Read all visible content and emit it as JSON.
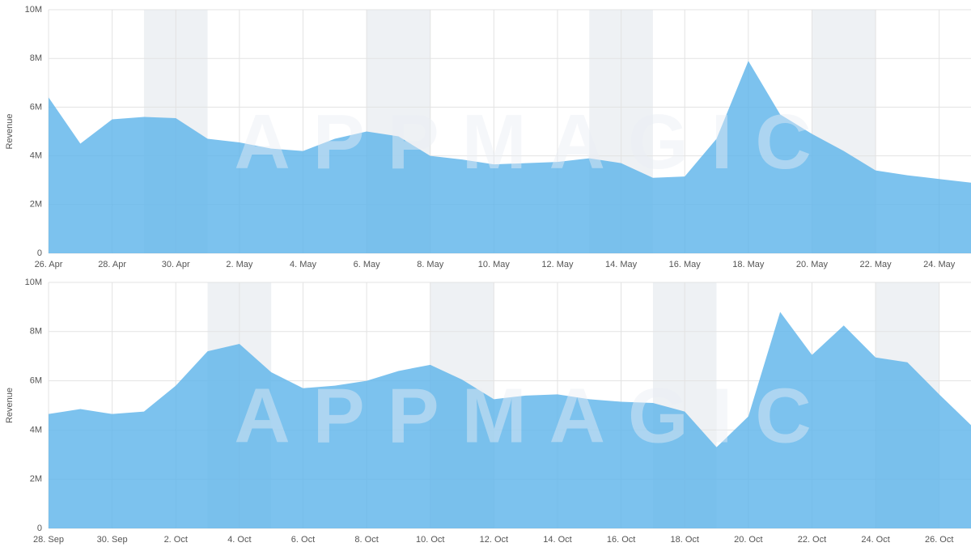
{
  "chart_data": [
    {
      "type": "area",
      "y_label": "Revenue",
      "watermark": "APPMAGIC",
      "color": "#5fb5ea",
      "grid": true,
      "categories": [
        "26. Apr",
        null,
        "28. Apr",
        null,
        "30. Apr",
        null,
        "2. May",
        null,
        "4. May",
        null,
        "6. May",
        null,
        "8. May",
        null,
        "10. May",
        null,
        "12. May",
        null,
        "14. May",
        null,
        "16. May",
        null,
        "18. May",
        null,
        "20. May",
        null,
        "22. May",
        null,
        "24. May",
        null
      ],
      "series": [
        {
          "name": "Revenue",
          "values": [
            6400000,
            4500000,
            5500000,
            5600000,
            5550000,
            4700000,
            4550000,
            4300000,
            4200000,
            4700000,
            5000000,
            4800000,
            4000000,
            3850000,
            3650000,
            3700000,
            3750000,
            3900000,
            3700000,
            3100000,
            3150000,
            4700000,
            7900000,
            5700000,
            4900000,
            4200000,
            3400000,
            3200000,
            3050000,
            2900000
          ]
        }
      ],
      "ylim": [
        0,
        10000000
      ],
      "yticks": [
        0,
        {
          "value": 2000000,
          "label": "2M"
        },
        {
          "value": 4000000,
          "label": "4M"
        },
        {
          "value": 6000000,
          "label": "6M"
        },
        {
          "value": 8000000,
          "label": "8M"
        },
        {
          "value": 10000000,
          "label": "10M"
        }
      ]
    },
    {
      "type": "area",
      "y_label": "Revenue",
      "watermark": "APPMAGIC",
      "color": "#5fb5ea",
      "grid": true,
      "categories": [
        "28. Sep",
        null,
        "30. Sep",
        null,
        "2. Oct",
        null,
        "4. Oct",
        null,
        "6. Oct",
        null,
        "8. Oct",
        null,
        "10. Oct",
        null,
        "12. Oct",
        null,
        "14. Oct",
        null,
        "16. Oct",
        null,
        "18. Oct",
        null,
        "20. Oct",
        null,
        "22. Oct",
        null,
        "24. Oct",
        null,
        "26. Oct",
        null
      ],
      "series": [
        {
          "name": "Revenue",
          "values": [
            4650000,
            4850000,
            4650000,
            4750000,
            5800000,
            7200000,
            7500000,
            6350000,
            5700000,
            5800000,
            6000000,
            6400000,
            6650000,
            6050000,
            5250000,
            5400000,
            5450000,
            5250000,
            5150000,
            5100000,
            4750000,
            3300000,
            4550000,
            8800000,
            7050000,
            8250000,
            6950000,
            6750000,
            5450000,
            4200000
          ]
        }
      ],
      "ylim": [
        0,
        10000000
      ],
      "yticks": [
        0,
        {
          "value": 2000000,
          "label": "2M"
        },
        {
          "value": 4000000,
          "label": "4M"
        },
        {
          "value": 6000000,
          "label": "6M"
        },
        {
          "value": 8000000,
          "label": "8M"
        },
        {
          "value": 10000000,
          "label": "10M"
        }
      ]
    }
  ]
}
